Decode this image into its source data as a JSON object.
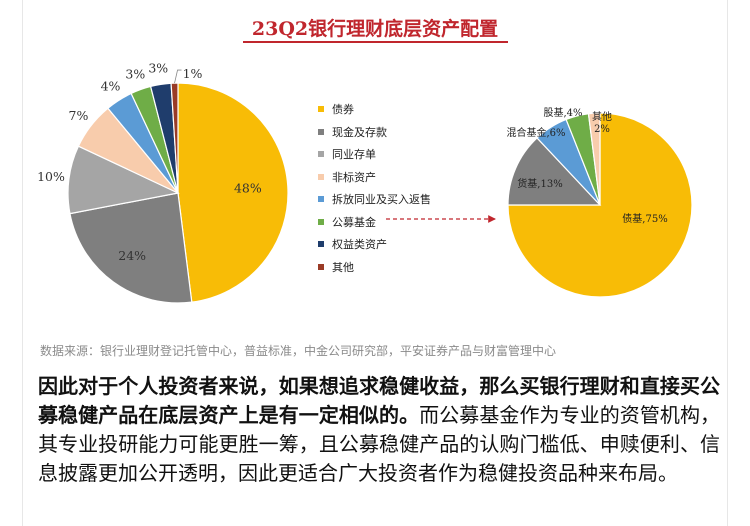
{
  "chart_data": [
    {
      "type": "pie",
      "title": "23Q2银行理财底层资产配置",
      "slices": [
        {
          "label": "债券",
          "value": 48,
          "display": "48%",
          "color": "#f8bc06"
        },
        {
          "label": "现金及存款",
          "value": 24,
          "display": "24%",
          "color": "#7f7f7f"
        },
        {
          "label": "同业存单",
          "value": 10,
          "display": "10%",
          "color": "#a5a5a5"
        },
        {
          "label": "非标资产",
          "value": 7,
          "display": "7%",
          "color": "#f8ccac"
        },
        {
          "label": "拆放同业及买入返售",
          "value": 4,
          "display": "4%",
          "color": "#5b9bd5"
        },
        {
          "label": "公募基金",
          "value": 3,
          "display": "3%",
          "color": "#6fad47"
        },
        {
          "label": "权益类资产",
          "value": 3,
          "display": "3%",
          "color": "#1f3d6c"
        },
        {
          "label": "其他",
          "value": 1,
          "display": "1%",
          "color": "#9a3b26"
        }
      ],
      "legend_position": "right"
    },
    {
      "type": "pie",
      "slices": [
        {
          "label": "债基,75%",
          "value": 75,
          "color": "#f8bc06"
        },
        {
          "label": "货基,13%",
          "value": 13,
          "color": "#7f7f7f"
        },
        {
          "label": "混合基金,6%",
          "value": 6,
          "color": "#5b9bd5"
        },
        {
          "label": "股基,4%",
          "value": 4,
          "color": "#6fad47"
        },
        {
          "label": "其他 2%",
          "value": 2,
          "color": "#f8ccac"
        }
      ]
    }
  ],
  "source": "数据来源：银行业理财登记托管中心，普益标准，中金公司研究部，平安证券产品与财富管理中心",
  "paragraph": {
    "lead": "因此对于个人投资者来说，如果想追求稳健收益，那么买银行理财和直接买公募稳健产品在底层资产上是有一定相似的。",
    "rest": "而公募基金作为专业的资管机构，其专业投研能力可能更胜一筹，且公募稳健产品的认购门槛低、申赎便利、信息披露更加公开透明，因此更适合广大投资者作为稳健投资品种来布局。"
  }
}
